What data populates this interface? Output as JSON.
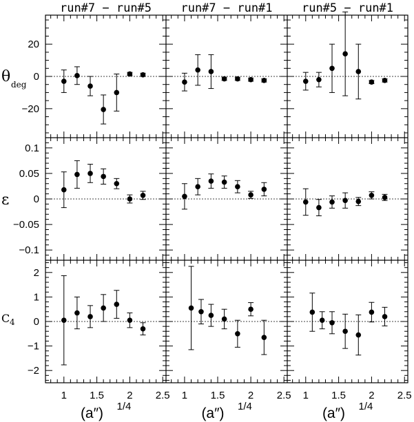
{
  "chart_data": {
    "type": "scatter",
    "style": "points with vertical error bars, 3x3 panel grid, dashed zero reference line",
    "columns": [
      "run#7 − run#5",
      "run#7 − run#1",
      "run#5 − run#1"
    ],
    "x_label": "(a″)",
    "x_label_sup": "1/4",
    "x_ticks": [
      "1",
      "1.5",
      "2",
      "2.5"
    ],
    "x_tick_values": [
      1,
      1.5,
      2,
      2.5
    ],
    "xlim": [
      0.72,
      2.55
    ],
    "rows": [
      {
        "label": "θ",
        "label_sub": "deg",
        "ylim": [
          -38,
          38
        ],
        "y_ticks": [
          -20,
          0,
          20
        ],
        "y_tick_labels": [
          "−20",
          "0",
          "20"
        ],
        "y_minor_step": 5
      },
      {
        "label": "ε",
        "label_sub": "",
        "ylim": [
          -0.12,
          0.12
        ],
        "y_ticks": [
          -0.1,
          -0.05,
          0,
          0.05,
          0.1
        ],
        "y_tick_labels": [
          "−0.1",
          "−0.05",
          "0",
          "0.05",
          "0.1"
        ],
        "y_minor_step": 0.01
      },
      {
        "label": "C",
        "label_sub": "4",
        "ylim": [
          -2.5,
          2.5
        ],
        "y_ticks": [
          -2,
          -1,
          0,
          1,
          2
        ],
        "y_tick_labels": [
          "−2",
          "−1",
          "0",
          "1",
          "2"
        ],
        "y_minor_step": 0.2
      }
    ],
    "panels": [
      {
        "row": 0,
        "col": 0,
        "x": [
          1.0,
          1.2,
          1.4,
          1.6,
          1.8,
          2.0,
          2.2
        ],
        "y": [
          -3,
          0.5,
          -6,
          -20.5,
          -10,
          1.5,
          1
        ],
        "err": [
          7,
          5.5,
          6,
          9,
          11.5,
          1,
          1
        ]
      },
      {
        "row": 0,
        "col": 1,
        "x": [
          1.0,
          1.2,
          1.4,
          1.6,
          1.8,
          2.0,
          2.2
        ],
        "y": [
          -3.5,
          4,
          3,
          -1.5,
          -1.5,
          -2,
          -2.5
        ],
        "err": [
          5.5,
          9.5,
          10.5,
          1,
          1,
          1,
          1
        ]
      },
      {
        "row": 0,
        "col": 2,
        "x": [
          1.0,
          1.2,
          1.4,
          1.6,
          1.8,
          2.0,
          2.2
        ],
        "y": [
          -3,
          -2,
          5,
          14,
          3,
          -3.5,
          -2.5
        ],
        "err": [
          5.5,
          4.5,
          15,
          26,
          17,
          1,
          1
        ]
      },
      {
        "row": 1,
        "col": 0,
        "x": [
          1.0,
          1.2,
          1.4,
          1.6,
          1.8,
          2.0,
          2.2
        ],
        "y": [
          0.018,
          0.048,
          0.05,
          0.044,
          0.03,
          0.0,
          0.007
        ],
        "err": [
          0.035,
          0.027,
          0.018,
          0.015,
          0.01,
          0.008,
          0.008
        ]
      },
      {
        "row": 1,
        "col": 1,
        "x": [
          1.0,
          1.2,
          1.4,
          1.6,
          1.8,
          2.0,
          2.2
        ],
        "y": [
          0.005,
          0.024,
          0.035,
          0.033,
          0.024,
          0.008,
          0.019
        ],
        "err": [
          0.025,
          0.016,
          0.014,
          0.012,
          0.012,
          0.007,
          0.013
        ]
      },
      {
        "row": 1,
        "col": 2,
        "x": [
          1.0,
          1.2,
          1.4,
          1.6,
          1.8,
          2.0,
          2.2
        ],
        "y": [
          -0.006,
          -0.017,
          -0.006,
          -0.003,
          -0.005,
          0.007,
          0.003
        ],
        "err": [
          0.026,
          0.016,
          0.012,
          0.015,
          0.008,
          0.007,
          0.006
        ]
      },
      {
        "row": 2,
        "col": 0,
        "x": [
          1.0,
          1.2,
          1.4,
          1.6,
          1.8,
          2.0,
          2.2
        ],
        "y": [
          0.05,
          0.35,
          0.2,
          0.55,
          0.7,
          0.05,
          -0.3
        ],
        "err": [
          1.82,
          0.65,
          0.45,
          0.55,
          0.57,
          0.3,
          0.25
        ]
      },
      {
        "row": 2,
        "col": 1,
        "x": [
          1.1,
          1.25,
          1.4,
          1.6,
          1.8,
          2.0,
          2.2
        ],
        "y": [
          0.55,
          0.4,
          0.25,
          0.1,
          -0.5,
          0.5,
          -0.65
        ],
        "err": [
          1.7,
          0.5,
          0.45,
          0.4,
          0.55,
          0.27,
          0.7
        ]
      },
      {
        "row": 2,
        "col": 2,
        "x": [
          1.1,
          1.25,
          1.4,
          1.6,
          1.8,
          2.0,
          2.2
        ],
        "y": [
          0.38,
          0.05,
          -0.05,
          -0.4,
          -0.55,
          0.38,
          0.2
        ],
        "err": [
          0.78,
          0.35,
          0.45,
          0.7,
          0.82,
          0.4,
          0.38
        ]
      }
    ]
  }
}
